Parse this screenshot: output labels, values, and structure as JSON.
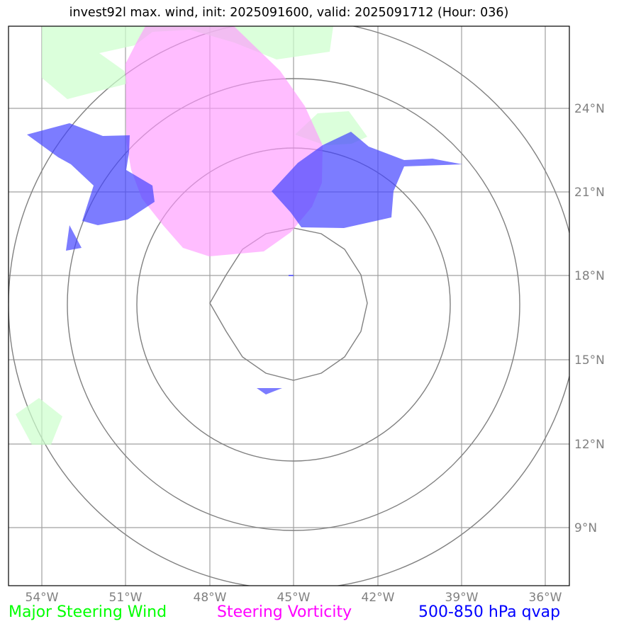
{
  "title": "invest92l max. wind, init: 2025091600, valid: 2025091712 (Hour: 036)",
  "legend": {
    "wind": {
      "label": "Major Steering Wind",
      "color": "#00ff00"
    },
    "vorticity": {
      "label": "Steering Vorticity",
      "color": "#ff00ff"
    },
    "qvap": {
      "label": "500-850 hPa qvap",
      "color": "#0000ff"
    }
  },
  "map": {
    "lon_ticks": [
      "54°W",
      "51°W",
      "48°W",
      "45°W",
      "42°W",
      "39°W",
      "36°W"
    ],
    "lat_ticks": [
      "24°N",
      "21°N",
      "18°N",
      "15°N",
      "12°N",
      "9°N"
    ],
    "gridline_color": "#a0a0a0",
    "range_ring_color": "#808080",
    "fill_colors": {
      "wind": "#ccffcc",
      "vorticity": "#ff99ff",
      "qvap": "#4444ff"
    }
  }
}
